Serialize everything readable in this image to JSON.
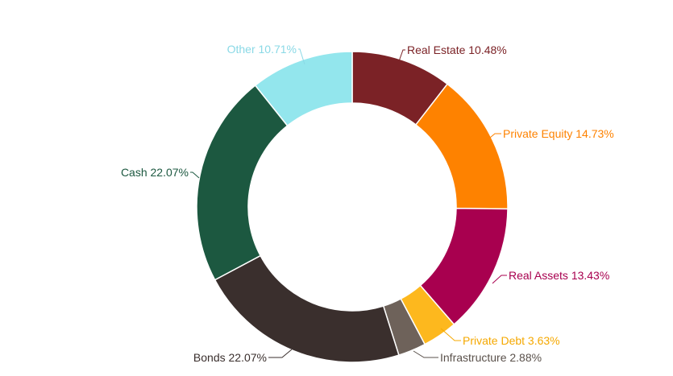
{
  "chart_data": {
    "type": "pie",
    "variant": "donut",
    "title": "",
    "legend": "none",
    "slices": [
      {
        "label": "Real Estate 10.48%",
        "name": "Real Estate",
        "value": 10.48,
        "color": "#7b2226",
        "label_color": "#7b2226"
      },
      {
        "label": "Private Equity 14.73%",
        "name": "Private Equity",
        "value": 14.73,
        "color": "#fe8200",
        "label_color": "#fe8200"
      },
      {
        "label": "Real Assets 13.43%",
        "name": "Real Assets",
        "value": 13.43,
        "color": "#a8004f",
        "label_color": "#a8004f"
      },
      {
        "label": "Private Debt 3.63%",
        "name": "Private Debt",
        "value": 3.63,
        "color": "#fdb81e",
        "label_color": "#f5a800"
      },
      {
        "label": "Infrastructure 2.88%",
        "name": "Infrastructure",
        "value": 2.88,
        "color": "#6e625a",
        "label_color": "#5a514b"
      },
      {
        "label": "Bonds 22.07%",
        "name": "Bonds",
        "value": 22.07,
        "color": "#3a2f2d",
        "label_color": "#3a2f2d"
      },
      {
        "label": "Cash 22.07%",
        "name": "Cash",
        "value": 22.07,
        "color": "#1c5840",
        "label_color": "#1c5840"
      },
      {
        "label": "Other 10.71%",
        "name": "Other",
        "value": 10.71,
        "color": "#93e6ed",
        "label_color": "#8ad9e6"
      }
    ]
  }
}
